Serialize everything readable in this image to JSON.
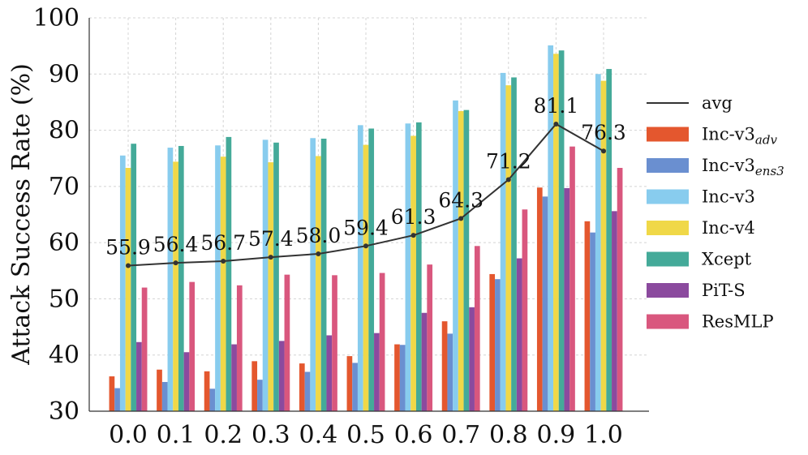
{
  "chart_data": {
    "type": "bar",
    "ylabel": "Attack Success Rate (%)",
    "xlabel": "",
    "ylim": [
      30,
      100
    ],
    "yticks": [
      30,
      40,
      50,
      60,
      70,
      80,
      90,
      100
    ],
    "grid": true,
    "legend_position": "right",
    "categories": [
      "0.0",
      "0.1",
      "0.2",
      "0.3",
      "0.4",
      "0.5",
      "0.6",
      "0.7",
      "0.8",
      "0.9",
      "1.0"
    ],
    "series": [
      {
        "name": "Inc-v3",
        "subscript": "adv",
        "color": "#e4572e",
        "values": [
          36.2,
          37.4,
          37.1,
          38.9,
          38.5,
          39.8,
          41.9,
          46.0,
          54.4,
          69.8,
          63.8
        ]
      },
      {
        "name": "Inc-v3",
        "subscript": "ens3",
        "color": "#6a8fd0",
        "values": [
          34.1,
          35.2,
          34.0,
          35.6,
          37.0,
          38.6,
          41.8,
          43.8,
          53.5,
          68.2,
          61.8
        ]
      },
      {
        "name": "Inc-v3",
        "subscript": "",
        "color": "#88ccee",
        "values": [
          75.5,
          76.9,
          77.3,
          78.3,
          78.6,
          80.9,
          81.2,
          85.3,
          90.2,
          95.1,
          90.0
        ]
      },
      {
        "name": "Inc-v4",
        "subscript": "",
        "color": "#f0d848",
        "values": [
          73.3,
          74.4,
          75.3,
          74.3,
          75.4,
          77.4,
          79.0,
          83.4,
          88.0,
          93.6,
          88.8
        ]
      },
      {
        "name": "Xcept",
        "subscript": "",
        "color": "#44aa99",
        "values": [
          77.6,
          77.2,
          78.8,
          77.8,
          78.5,
          80.3,
          81.4,
          83.6,
          89.4,
          94.2,
          90.9
        ]
      },
      {
        "name": "PiT-S",
        "subscript": "",
        "color": "#8b4a9e",
        "values": [
          42.3,
          40.5,
          41.9,
          42.5,
          43.5,
          43.9,
          47.5,
          48.5,
          57.2,
          69.7,
          65.6
        ]
      },
      {
        "name": "ResMLP",
        "subscript": "",
        "color": "#d9577e",
        "values": [
          52.0,
          53.0,
          52.4,
          54.3,
          54.2,
          54.6,
          56.1,
          59.4,
          65.9,
          77.1,
          73.3
        ]
      }
    ],
    "line": {
      "name": "avg",
      "color": "#333333",
      "values": [
        55.9,
        56.4,
        56.7,
        57.4,
        58.0,
        59.4,
        61.3,
        64.3,
        71.2,
        81.1,
        76.3
      ],
      "labels": [
        "55.9",
        "56.4",
        "56.7",
        "57.4",
        "58.0",
        "59.4",
        "61.3",
        "64.3",
        "71.2",
        "81.1",
        "76.3"
      ]
    }
  }
}
